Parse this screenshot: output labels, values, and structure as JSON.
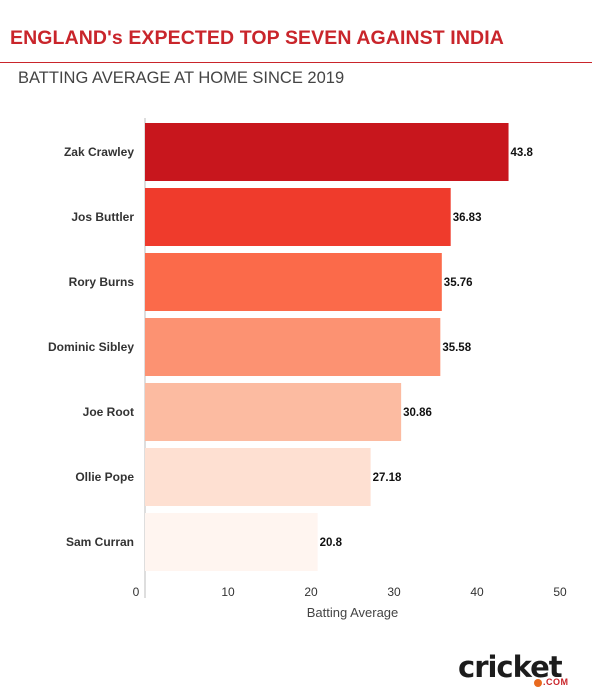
{
  "header": {
    "title": "ENGLAND's EXPECTED TOP SEVEN AGAINST INDIA",
    "subtitle": "BATTING AVERAGE AT HOME SINCE 2019"
  },
  "brand": {
    "logo_text": "cricket",
    "logo_suffix": ".COM",
    "accent_color": "#c9252b"
  },
  "chart_data": {
    "type": "bar",
    "orientation": "horizontal",
    "categories": [
      "Zak Crawley",
      "Jos Buttler",
      "Rory Burns",
      "Dominic Sibley",
      "Joe Root",
      "Ollie Pope",
      "Sam Curran"
    ],
    "values": [
      43.8,
      36.83,
      35.76,
      35.58,
      30.86,
      27.18,
      20.8
    ],
    "value_labels": [
      "43.8",
      "36.83",
      "35.76",
      "35.58",
      "30.86",
      "27.18",
      "20.8"
    ],
    "colors": [
      "#c8161d",
      "#ef3b2c",
      "#fb6a4a",
      "#fc9272",
      "#fcbba1",
      "#fee0d2",
      "#fff5f0"
    ],
    "xlabel": "Batting Average",
    "ylabel": "",
    "xlim": [
      0,
      50
    ],
    "xticks": [
      0,
      10,
      20,
      30,
      40,
      50
    ],
    "grid": false,
    "legend": "none"
  }
}
